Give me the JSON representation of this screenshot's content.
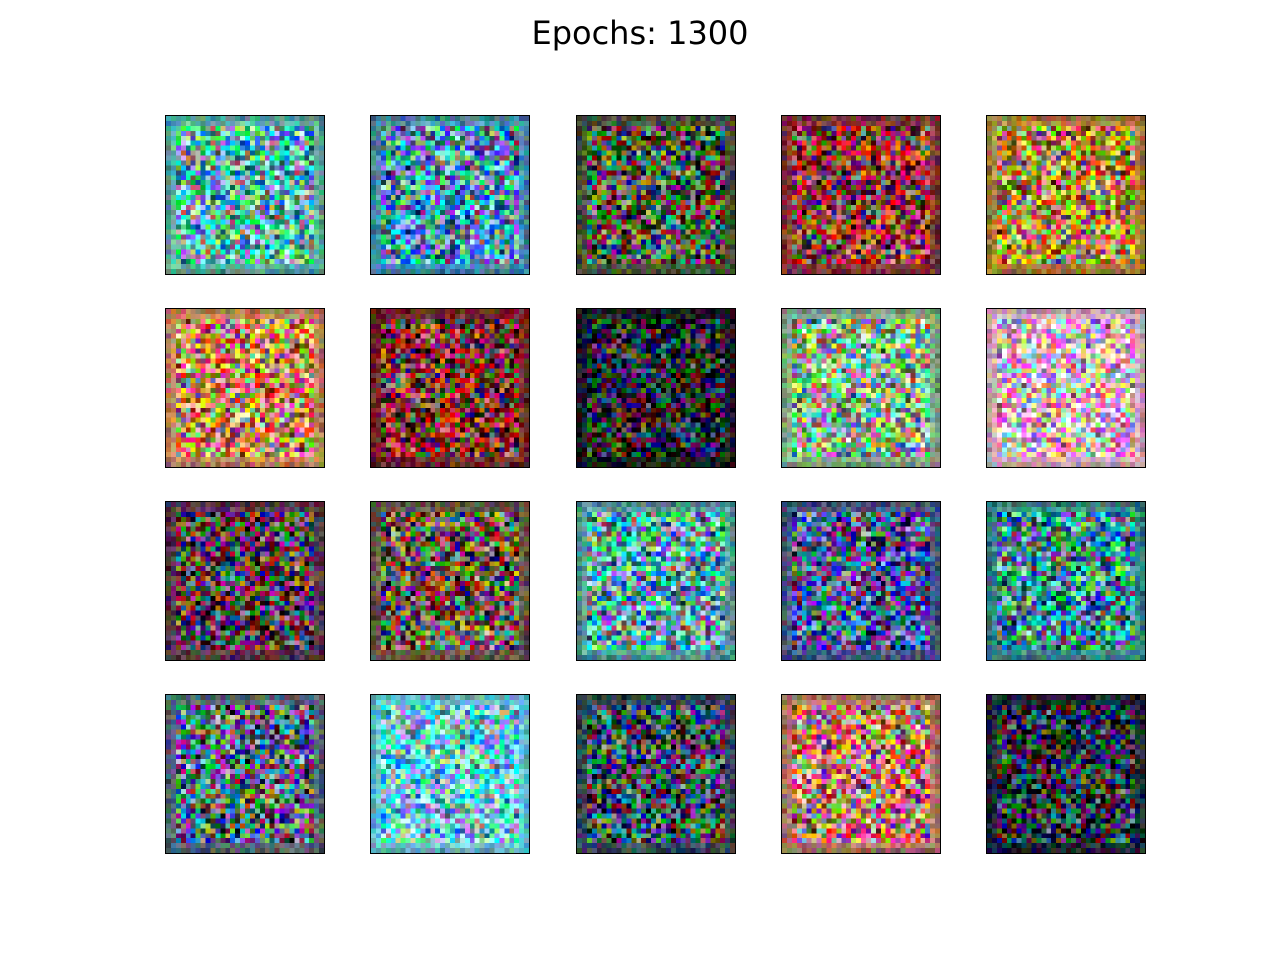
{
  "figure": {
    "title": "Epochs: 1300",
    "grid": {
      "rows": 4,
      "cols": 5
    },
    "samples": [
      {
        "id": 1,
        "tint": "#5fb3a8"
      },
      {
        "id": 2,
        "tint": "#4a8fb0"
      },
      {
        "id": 3,
        "tint": "#4a5a3a"
      },
      {
        "id": 4,
        "tint": "#8a3a3a"
      },
      {
        "id": 5,
        "tint": "#b0883a"
      },
      {
        "id": 6,
        "tint": "#c88a5a"
      },
      {
        "id": 7,
        "tint": "#7a2a2a"
      },
      {
        "id": 8,
        "tint": "#1a1a2a"
      },
      {
        "id": 9,
        "tint": "#8ab08a"
      },
      {
        "id": 10,
        "tint": "#d8b0c0"
      },
      {
        "id": 11,
        "tint": "#5a3a4a"
      },
      {
        "id": 12,
        "tint": "#6a5a4a"
      },
      {
        "id": 13,
        "tint": "#5aa0a0"
      },
      {
        "id": 14,
        "tint": "#4a5a8a"
      },
      {
        "id": 15,
        "tint": "#3a8a8a"
      },
      {
        "id": 16,
        "tint": "#5a6a7a"
      },
      {
        "id": 17,
        "tint": "#6ac8d8"
      },
      {
        "id": 18,
        "tint": "#3a4a5a"
      },
      {
        "id": 19,
        "tint": "#b87a6a"
      },
      {
        "id": 20,
        "tint": "#1a2a3a"
      }
    ]
  }
}
